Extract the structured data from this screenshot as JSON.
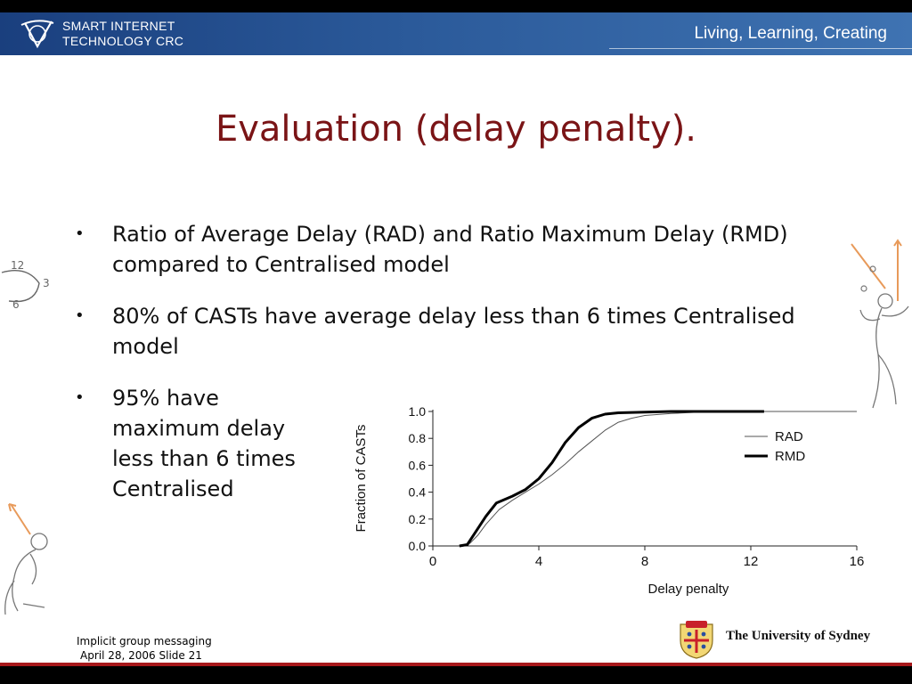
{
  "header": {
    "org_line1": "SMART INTERNET",
    "org_line2": "TECHNOLOGY CRC",
    "tagline": "Living, Learning, Creating"
  },
  "slide": {
    "title": "Evaluation (delay penalty).",
    "bullets": [
      "Ratio of Average Delay (RAD) and Ratio Maximum Delay (RMD) compared to Centralised model",
      "80% of CASTs have average delay less than 6 times Centralised model",
      "95% have maximum delay less than 6 times Centralised"
    ]
  },
  "footer": {
    "line1": "Implicit group messaging",
    "line2": "April 28, 2006 Slide 21",
    "university": "The University of Sydney"
  },
  "colors": {
    "header_blue": "#2b5a9a",
    "title_red": "#7a1416",
    "footer_red": "#a7181b"
  },
  "chart_data": {
    "type": "line",
    "xlabel": "Delay penalty",
    "ylabel": "Fraction of CASTs",
    "xlim": [
      0,
      16
    ],
    "ylim": [
      0,
      1
    ],
    "xticks": [
      "0",
      "4",
      "8",
      "12",
      "16"
    ],
    "yticks": [
      "0.0",
      "0.2",
      "0.4",
      "0.6",
      "0.8",
      "1.0"
    ],
    "legend_position": "right",
    "series": [
      {
        "name": "RAD",
        "style": "thin",
        "x": [
          1.0,
          1.4,
          1.7,
          2.0,
          2.5,
          3.0,
          3.5,
          4.0,
          4.5,
          5.0,
          5.5,
          6.0,
          6.5,
          7.0,
          7.5,
          8.0,
          9.0,
          10.0,
          12.0,
          16.0
        ],
        "y": [
          0.0,
          0.02,
          0.08,
          0.16,
          0.27,
          0.34,
          0.4,
          0.46,
          0.53,
          0.61,
          0.7,
          0.78,
          0.86,
          0.92,
          0.95,
          0.97,
          0.985,
          0.995,
          1.0,
          1.0
        ]
      },
      {
        "name": "RMD",
        "style": "thick",
        "x": [
          1.0,
          1.3,
          1.6,
          2.0,
          2.4,
          3.0,
          3.5,
          4.0,
          4.5,
          5.0,
          5.5,
          6.0,
          6.5,
          7.0,
          8.0,
          9.0,
          10.0,
          12.5
        ],
        "y": [
          0.0,
          0.01,
          0.1,
          0.22,
          0.32,
          0.37,
          0.42,
          0.5,
          0.62,
          0.77,
          0.88,
          0.95,
          0.98,
          0.99,
          0.995,
          1.0,
          1.0,
          1.0
        ]
      }
    ]
  }
}
